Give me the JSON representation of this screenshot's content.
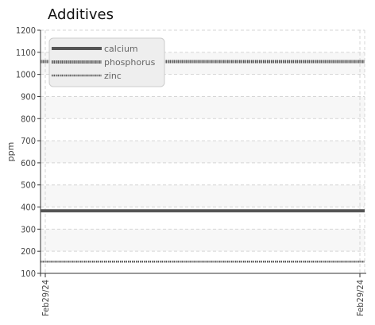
{
  "chart_data": {
    "type": "line",
    "title": "Additives",
    "ylabel": "ppm",
    "xlabel": "",
    "ylim": [
      100,
      1200
    ],
    "yticks": [
      100,
      200,
      300,
      400,
      500,
      600,
      700,
      800,
      900,
      1000,
      1100,
      1200
    ],
    "x": [
      "Feb29/24",
      "Feb29/24"
    ],
    "grid": true,
    "legend_position": "top-left",
    "series": [
      {
        "name": "calcium",
        "values": [
          383,
          383
        ],
        "color": "#555555",
        "style": "solid"
      },
      {
        "name": "phosphorus",
        "values": [
          1058,
          1058
        ],
        "color": "#555555",
        "style": "dotted"
      },
      {
        "name": "zinc",
        "values": [
          153,
          153
        ],
        "color": "#555555",
        "style": "dotted-thin"
      }
    ]
  }
}
